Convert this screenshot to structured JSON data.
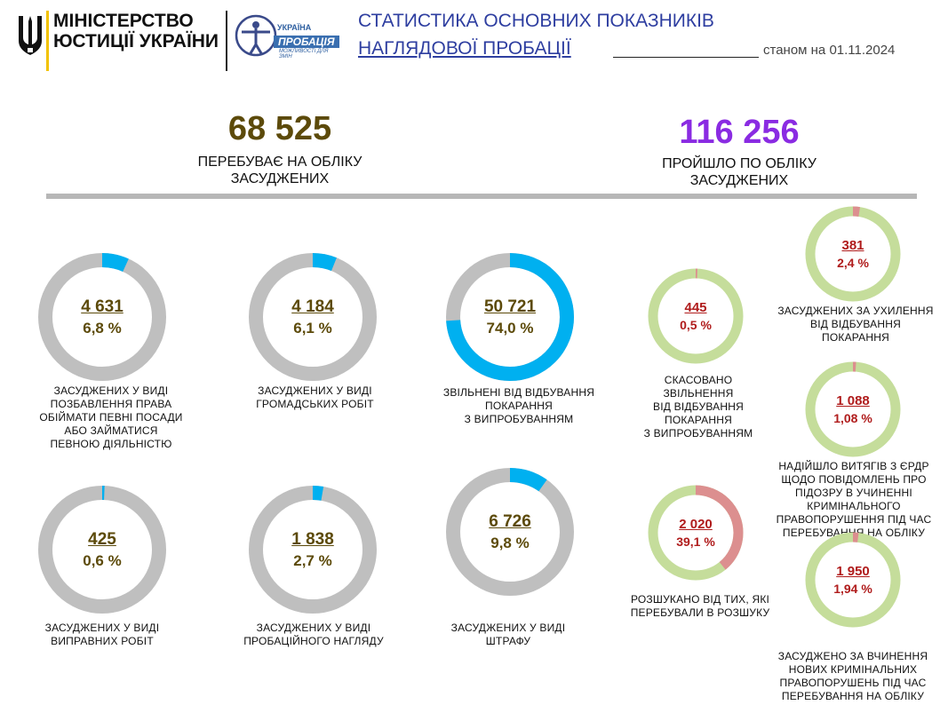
{
  "header": {
    "ministry_line1": "МІНІСТЕРСТВО",
    "ministry_line2": "ЮСТИЦІЇ УКРАЇНИ",
    "logo_text_1": "УКРАЇНА",
    "logo_text_2": "ПРОБАЦІЯ",
    "logo_text_3": "МОЖЛИВОСТІ ДЛЯ ЗМІН",
    "title_line1": "СТАТИСТИКА ОСНОВНИХ ПОКАЗНИКІВ",
    "title_line2": "НАГЛЯДОВОЇ ПРОБАЦІЇ",
    "as_of": "станом на 01.11.2024"
  },
  "summary": {
    "left_value": "68 525",
    "left_label1": "ПЕРЕБУВАЄ НА ОБЛІКУ",
    "left_label2": "ЗАСУДЖЕНИХ",
    "right_value": "116 256",
    "right_label1": "ПРОЙШЛО ПО ОБЛІКУ",
    "right_label2": "ЗАСУДЖЕНИХ"
  },
  "colors": {
    "left_value": "#5c4a0a",
    "right_value": "#8a2be2",
    "blue": "#00b0f0",
    "grey": "#bfbfbf",
    "green": "#c5dd9b",
    "red_seg": "#dc8f8f",
    "red_text": "#b01c1c"
  },
  "chart_data": [
    {
      "type": "pie",
      "style": "donut",
      "value": "4 631",
      "percent": "6,8 %",
      "share": 6.8,
      "label": [
        "ЗАСУДЖЕНИХ У ВИДІ",
        "ПОЗБАВЛЕННЯ ПРАВА",
        "ОБІЙМАТИ ПЕВНІ ПОСАДИ",
        "АБО ЗАЙМАТИСЯ",
        "ПЕВНОЮ ДІЯЛЬНІСТЮ"
      ]
    },
    {
      "type": "pie",
      "style": "donut",
      "value": "4 184",
      "percent": "6,1 %",
      "share": 6.1,
      "label": [
        "ЗАСУДЖЕНИХ У ВИДІ",
        "ГРОМАДСЬКИХ РОБІТ"
      ]
    },
    {
      "type": "pie",
      "style": "donut",
      "value": "50 721",
      "percent": "74,0 %",
      "share": 74.0,
      "label": [
        "ЗВІЛЬНЕНІ  ВІД ВІДБУВАННЯ",
        "ПОКАРАННЯ",
        "З ВИПРОБУВАННЯМ"
      ]
    },
    {
      "type": "pie",
      "style": "donut",
      "value": "425",
      "percent": "0,6 %",
      "share": 0.6,
      "label": [
        "ЗАСУДЖЕНИХ  У ВИДІ",
        "ВИПРАВНИХ  РОБІТ"
      ]
    },
    {
      "type": "pie",
      "style": "donut",
      "value": "1 838",
      "percent": "2,7 %",
      "share": 2.7,
      "label": [
        "ЗАСУДЖЕНИХ  У ВИДІ",
        "ПРОБАЦІЙНОГО  НАГЛЯДУ"
      ]
    },
    {
      "type": "pie",
      "style": "donut",
      "value": "6 726",
      "percent": "9,8 %",
      "share": 9.8,
      "label": [
        "ЗАСУДЖЕНИХ  У ВИДІ",
        "ШТРАФУ"
      ]
    },
    {
      "type": "pie",
      "style": "donut",
      "value": "445",
      "percent": "0,5 %",
      "share": 0.5,
      "label": [
        "СКАСОВАНО",
        "ЗВІЛЬНЕННЯ",
        "ВІД ВІДБУВАННЯ",
        "ПОКАРАННЯ",
        "З ВИПРОБУВАННЯМ"
      ]
    },
    {
      "type": "pie",
      "style": "donut",
      "value": "2 020",
      "percent": "39,1 %",
      "share": 39.1,
      "label": [
        "РОЗШУКАНО ВІД ТИХ, ЯКІ",
        "ПЕРЕБУВАЛИ В РОЗШУКУ"
      ]
    },
    {
      "type": "pie",
      "style": "donut",
      "value": "381",
      "percent": "2,4 %",
      "share": 2.4,
      "label": [
        "ЗАСУДЖЕНИХ  ЗА УХИЛЕННЯ",
        "ВІД  ВІДБУВАННЯ",
        "ПОКАРАННЯ"
      ]
    },
    {
      "type": "pie",
      "style": "donut",
      "value": "1 088",
      "percent": "1,08 %",
      "share": 1.08,
      "label": [
        "НАДІЙШЛО ВИТЯГІВ З ЄРДР",
        "ЩОДО ПОВІДОМЛЕНЬ ПРО",
        "ПІДОЗРУ В УЧИНЕННІ",
        "КРИМІНАЛЬНОГО",
        "ПРАВОПОРУШЕННЯ  ПІД ЧАС",
        "ПЕРЕБУВАННЯ  НА ОБЛІКУ"
      ]
    },
    {
      "type": "pie",
      "style": "donut",
      "value": "1 950",
      "percent": "1,94 %",
      "share": 1.94,
      "label": [
        "ЗАСУДЖЕНО  ЗА  ВЧИНЕННЯ",
        "НОВИХ  КРИМІНАЛЬНИХ",
        "ПРАВОПОРУШЕНЬ  ПІД ЧАС",
        "ПЕРЕБУВАННЯ  НА ОБЛІКУ"
      ]
    }
  ]
}
